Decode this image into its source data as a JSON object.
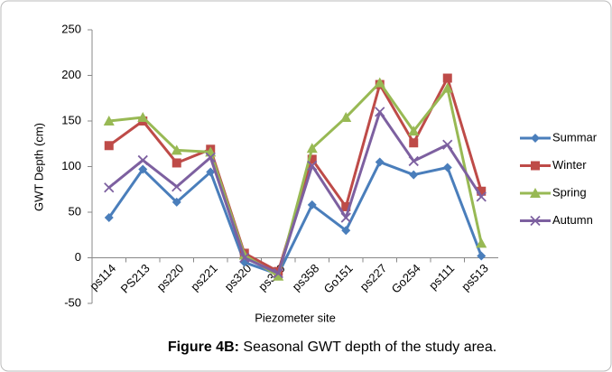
{
  "chart_data": {
    "type": "line",
    "y_label": "GWT Depth (cm)",
    "x_label": "Piezometer site",
    "caption_label": "Figure 4B:",
    "caption": "Seasonal GWT depth of the study area.",
    "categories": [
      "ps114",
      "PS213",
      "ps220",
      "ps221",
      "ps320",
      "ps329",
      "ps358",
      "Go151",
      "ps227",
      "Go254",
      "ps111",
      "ps513"
    ],
    "series": [
      {
        "name": "Summar",
        "color": "#4a7ebb",
        "marker": "diamond",
        "values": [
          44,
          97,
          61,
          94,
          -5,
          -18,
          58,
          30,
          105,
          91,
          99,
          2
        ]
      },
      {
        "name": "Winter",
        "color": "#be4b48",
        "marker": "square",
        "values": [
          123,
          150,
          104,
          119,
          5,
          -15,
          108,
          56,
          190,
          126,
          197,
          73
        ]
      },
      {
        "name": "Spring",
        "color": "#98b954",
        "marker": "triangle",
        "values": [
          150,
          154,
          118,
          116,
          3,
          -20,
          120,
          154,
          192,
          139,
          186,
          16
        ]
      },
      {
        "name": "Autumn",
        "color": "#7d60a0",
        "marker": "x",
        "values": [
          77,
          107,
          78,
          110,
          0,
          -17,
          101,
          44,
          160,
          106,
          124,
          67
        ]
      }
    ],
    "ylim": [
      -50,
      250
    ],
    "yticks": [
      -50,
      0,
      50,
      100,
      150,
      200,
      250
    ],
    "grid": false,
    "legend": "right"
  }
}
